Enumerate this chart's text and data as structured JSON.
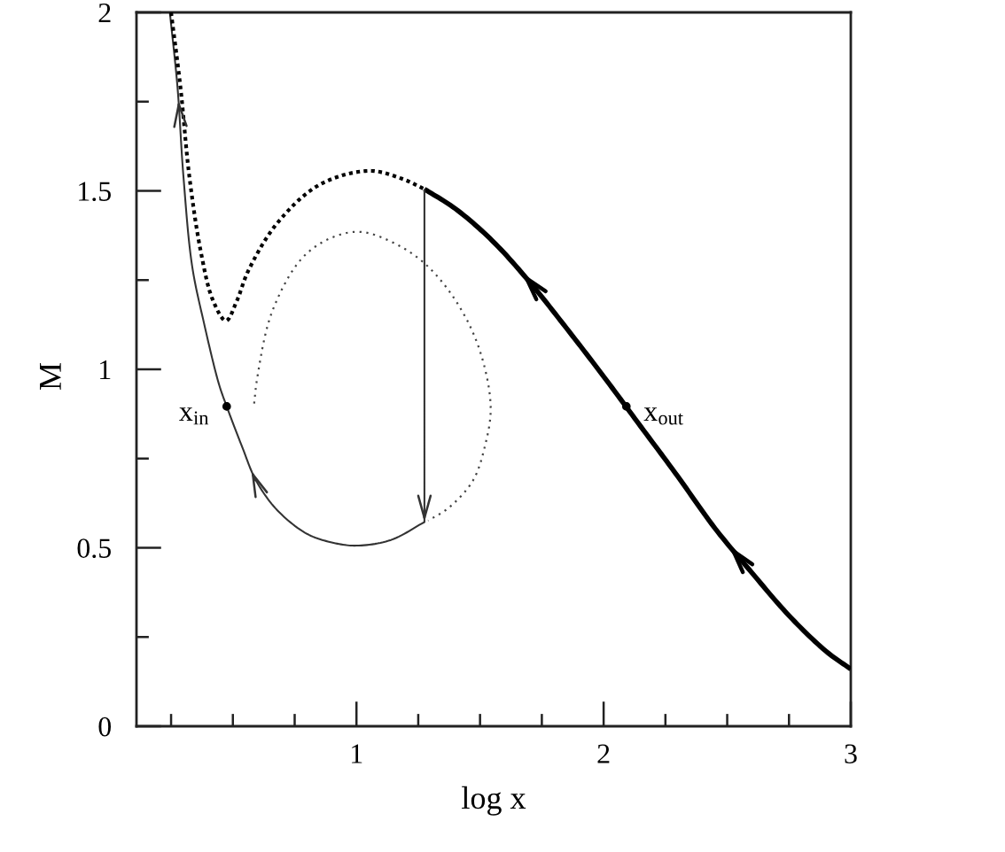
{
  "chart_data": {
    "type": "line",
    "xlabel": "log x",
    "ylabel": "M",
    "xlim": [
      0.11,
      3
    ],
    "ylim": [
      0,
      2
    ],
    "xticks": [
      {
        "value": 0.25,
        "label": null
      },
      {
        "value": 0.5,
        "label": null
      },
      {
        "value": 0.75,
        "label": null
      },
      1,
      {
        "value": 1.25,
        "label": null
      },
      {
        "value": 1.5,
        "label": null
      },
      {
        "value": 1.75,
        "label": null
      },
      2,
      {
        "value": 2.25,
        "label": null
      },
      {
        "value": 2.5,
        "label": null
      },
      {
        "value": 2.75,
        "label": null
      },
      3
    ],
    "yticks": [
      0,
      {
        "value": 0.25,
        "label": null
      },
      0.5,
      {
        "value": 0.75,
        "label": null
      },
      1,
      {
        "value": 1.25,
        "label": null
      },
      1.5,
      {
        "value": 1.75,
        "label": null
      },
      2
    ],
    "grid": false,
    "marker": "none",
    "series": [
      {
        "color": "#000000",
        "line_style": "solid",
        "x": [
          3.0,
          2.9,
          2.75,
          2.6,
          2.45,
          2.3,
          2.15,
          2.0,
          1.85,
          1.7,
          1.55,
          1.4,
          1.275
        ],
        "values": [
          0.16,
          0.21,
          0.31,
          0.43,
          0.555,
          0.7,
          0.84,
          0.98,
          1.115,
          1.245,
          1.36,
          1.45,
          1.505
        ]
      },
      {
        "color": "#333333",
        "line_style": "solid",
        "x": [
          1.275,
          1.275,
          1.14,
          1.0,
          0.9,
          0.8,
          0.68,
          0.594,
          0.539,
          0.475,
          0.443,
          0.383,
          0.335,
          0.3,
          0.276,
          0.245
        ],
        "values": [
          1.505,
          0.572,
          0.522,
          0.506,
          0.515,
          0.539,
          0.605,
          0.688,
          0.78,
          0.896,
          0.96,
          1.13,
          1.29,
          1.54,
          1.79,
          2.0
        ]
      },
      {
        "color": "#000000",
        "line_style": "dotted",
        "x": [
          0.25,
          0.288,
          0.324,
          0.371,
          0.419,
          0.472,
          0.515,
          0.563,
          0.68,
          0.85,
          1.05,
          1.184,
          1.275
        ],
        "values": [
          2.0,
          1.79,
          1.54,
          1.327,
          1.194,
          1.136,
          1.19,
          1.277,
          1.41,
          1.517,
          1.556,
          1.534,
          1.505
        ]
      },
      {
        "color": "#444444",
        "line_style": "dotted",
        "x": [
          0.586,
          0.599,
          0.658,
          0.778,
          0.897,
          1.017,
          1.16,
          1.28,
          1.4,
          1.495,
          1.543,
          1.518,
          1.471,
          1.375,
          1.29
        ],
        "values": [
          0.904,
          0.978,
          1.16,
          1.31,
          1.368,
          1.385,
          1.351,
          1.294,
          1.194,
          1.061,
          0.896,
          0.78,
          0.688,
          0.613,
          0.576
        ]
      },
      {
        "type": "scatter",
        "color": "#000000",
        "marker": "circle",
        "x": [
          0.475,
          2.092
        ],
        "values": [
          0.896,
          0.896
        ]
      }
    ],
    "annotations": [
      {
        "text": "x$_{in}$",
        "x": 0.475,
        "y": 0.896
      },
      {
        "text": "x$_{out}$",
        "x": 2.092,
        "y": 0.896
      }
    ]
  }
}
